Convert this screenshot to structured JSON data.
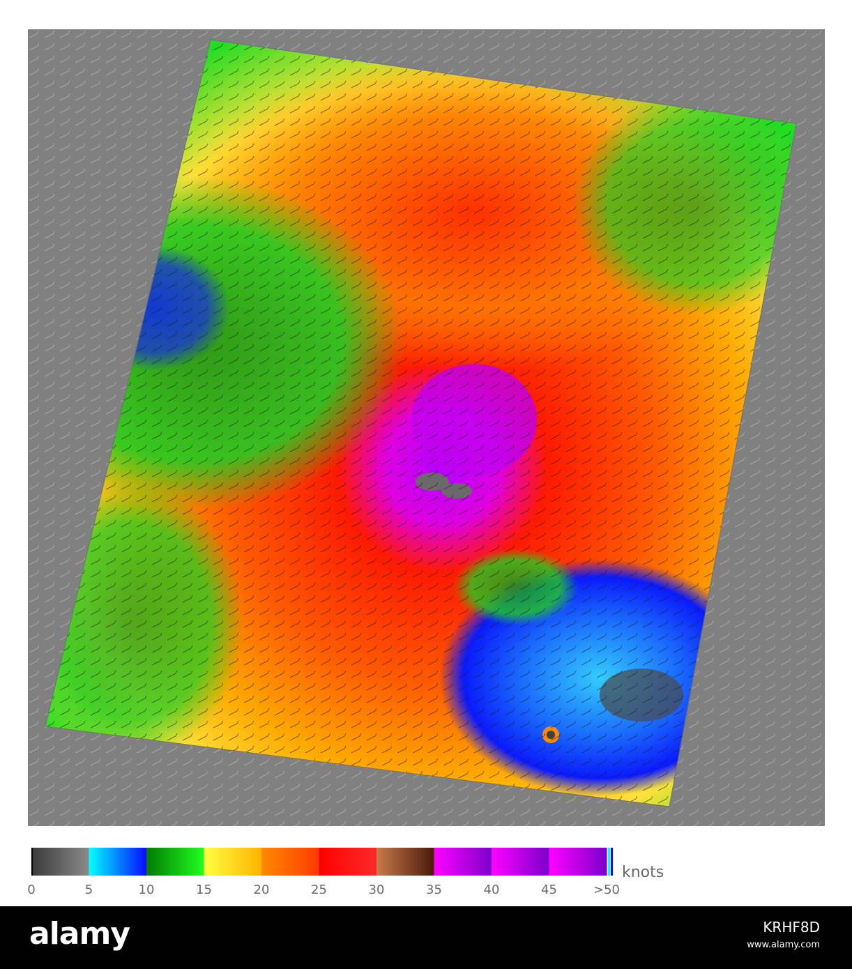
{
  "colors": {
    "background_gray": "#808080",
    "legend_stops": [
      "#3a3a3a",
      "#8a8a8a",
      "#00ffff",
      "#0a0aff",
      "#007a00",
      "#22ff22",
      "#ffff44",
      "#ffb300",
      "#ff8a00",
      "#ff3a00",
      "#ff0000",
      "#ff2a2a",
      "#c87a4a",
      "#4a1a0a",
      "#ff00ff",
      "#7a00cc"
    ]
  },
  "legend": {
    "units": "knots",
    "ticks": [
      "0",
      "5",
      "10",
      "15",
      "20",
      "25",
      "30",
      "35",
      "40",
      "45",
      ">50"
    ]
  },
  "footer": {
    "brand": "alamy",
    "image_id": "KRHF8D",
    "site": "www.alamy.com"
  }
}
